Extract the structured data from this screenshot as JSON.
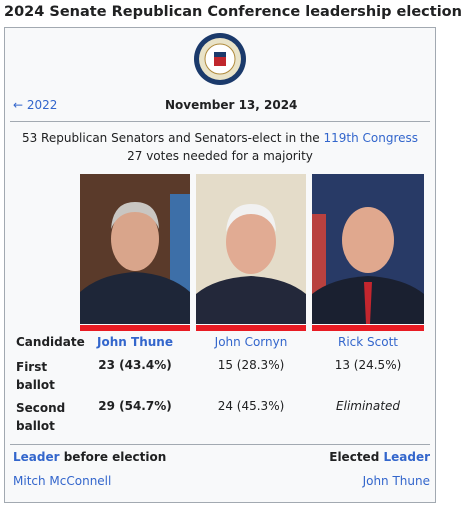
{
  "title": "2024 Senate Republican Conference leadership election",
  "previous": "← 2022",
  "date": "November 13, 2024",
  "description": {
    "text": "53 Republican Senators and Senators-elect in the",
    "link": "119th Congress",
    "line2": "27 votes needed for a majority"
  },
  "table": {
    "header_label": "Candidate",
    "candidates": [
      "John Thune",
      "John Cornyn",
      "Rick Scott"
    ],
    "rows": [
      {
        "label": "First ballot",
        "cells": [
          "23 (43.4%)",
          "15 (28.3%)",
          "13 (24.5%)"
        ]
      },
      {
        "label": "Second ballot",
        "cells": [
          "29 (54.7%)",
          "24 (45.3%)",
          "Eliminated"
        ]
      }
    ]
  },
  "leader": {
    "before_link": "Leader",
    "before_text": "before election",
    "elected_text": "Elected",
    "elected_link": "Leader",
    "before_name": "Mitch McConnell",
    "elected_name": "John Thune"
  }
}
